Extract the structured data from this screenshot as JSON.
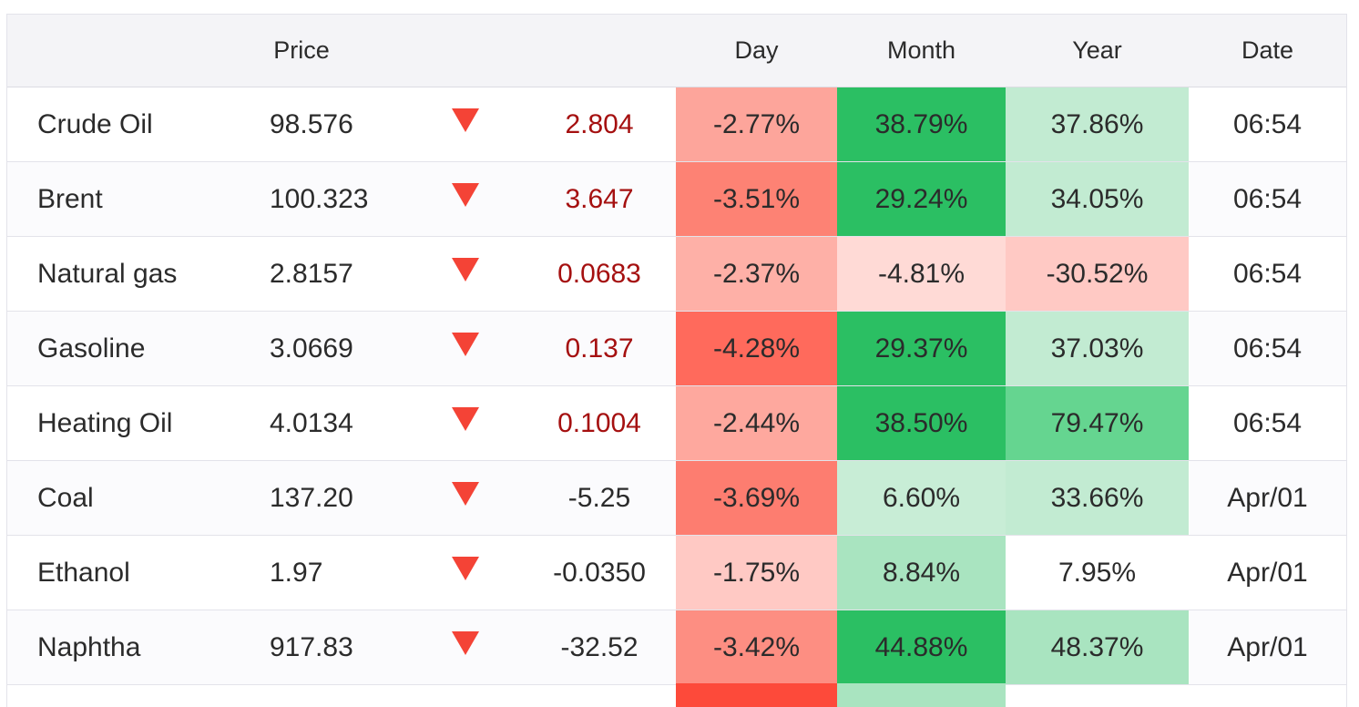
{
  "header": {
    "price": "Price",
    "day": "Day",
    "month": "Month",
    "year": "Year",
    "date": "Date"
  },
  "rows": [
    {
      "name": "Crude Oil",
      "price": "98.576",
      "change": "2.804",
      "change_color": "red",
      "day": "-2.77%",
      "day_bg": "#fda59b",
      "month": "38.79%",
      "month_bg": "#2bbf63",
      "year": "37.86%",
      "year_bg": "#c2ebd2",
      "date": "06:54"
    },
    {
      "name": "Brent",
      "price": "100.323",
      "change": "3.647",
      "change_color": "red",
      "day": "-3.51%",
      "day_bg": "#fd8274",
      "month": "29.24%",
      "month_bg": "#2bbf63",
      "year": "34.05%",
      "year_bg": "#c2ebd2",
      "date": "06:54"
    },
    {
      "name": "Natural gas",
      "price": "2.8157",
      "change": "0.0683",
      "change_color": "red",
      "day": "-2.37%",
      "day_bg": "#feb0a7",
      "month": "-4.81%",
      "month_bg": "#ffdad6",
      "year": "-30.52%",
      "year_bg": "#ffc9c4",
      "date": "06:54"
    },
    {
      "name": "Gasoline",
      "price": "3.0669",
      "change": "0.137",
      "change_color": "red",
      "day": "-4.28%",
      "day_bg": "#ff6a5c",
      "month": "29.37%",
      "month_bg": "#2bbf63",
      "year": "37.03%",
      "year_bg": "#c2ebd2",
      "date": "06:54"
    },
    {
      "name": "Heating Oil",
      "price": "4.0134",
      "change": "0.1004",
      "change_color": "red",
      "day": "-2.44%",
      "day_bg": "#fea89e",
      "month": "38.50%",
      "month_bg": "#2bbf63",
      "year": "79.47%",
      "year_bg": "#65d590",
      "date": "06:54"
    },
    {
      "name": "Coal",
      "price": "137.20",
      "change": "-5.25",
      "change_color": "dark",
      "day": "-3.69%",
      "day_bg": "#fd7d70",
      "month": "6.60%",
      "month_bg": "#c8edd6",
      "year": "33.66%",
      "year_bg": "#c2ebd2",
      "date": "Apr/01"
    },
    {
      "name": "Ethanol",
      "price": "1.97",
      "change": "-0.0350",
      "change_color": "dark",
      "day": "-1.75%",
      "day_bg": "#ffc9c4",
      "month": "8.84%",
      "month_bg": "#a9e4c0",
      "year": "7.95%",
      "year_bg": "#ffffff",
      "date": "Apr/01"
    },
    {
      "name": "Naphtha",
      "price": "917.83",
      "change": "-32.52",
      "change_color": "dark",
      "day": "-3.42%",
      "day_bg": "#fd8e82",
      "month": "44.88%",
      "month_bg": "#2bbf63",
      "year": "48.37%",
      "year_bg": "#a9e4c0",
      "date": "Apr/01"
    }
  ],
  "colors": {
    "down_arrow": "#f44336",
    "negative_change_text": "#a51010",
    "partial_row_day": "#fd4a3a",
    "partial_row_month": "#a9e4c0"
  },
  "icons": {
    "row_direction": "down-triangle-icon"
  }
}
